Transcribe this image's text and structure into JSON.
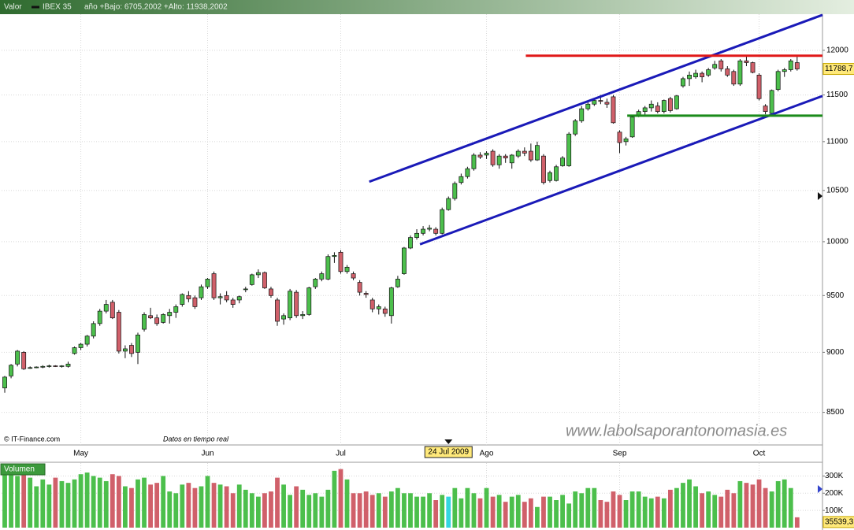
{
  "chart_data": {
    "type": "candlestick",
    "label": "Valor",
    "title": "IBEX 35",
    "subtitle": "año +Bajo: 6705,2002 +Alto: 11938,2002",
    "log_scale": true,
    "grid": true,
    "xlim": [
      -0.5,
      129
    ],
    "ylim": [
      8240,
      12420
    ],
    "yticks": [
      8500,
      9000,
      9500,
      10000,
      10500,
      11000,
      11500,
      12000
    ],
    "xticks": [
      {
        "value": 12,
        "label": "May"
      },
      {
        "value": 32,
        "label": "Jun"
      },
      {
        "value": 53,
        "label": "Jul"
      },
      {
        "value": 76,
        "label": "Ago"
      },
      {
        "value": 97,
        "label": "Sep"
      },
      {
        "value": 119,
        "label": "Oct"
      }
    ],
    "up_color": "#4cbf4c",
    "down_color": "#d0606a",
    "last_price_label": "11788,7",
    "candles": [
      {
        "open": 8700,
        "high": 8800,
        "low": 8660,
        "close": 8790
      },
      {
        "open": 8800,
        "high": 8900,
        "low": 8780,
        "close": 8890
      },
      {
        "open": 8900,
        "high": 9020,
        "low": 8880,
        "close": 9010
      },
      {
        "open": 9000,
        "high": 9010,
        "low": 8850,
        "close": 8860
      },
      {
        "open": 8870,
        "high": 8880,
        "low": 8860,
        "close": 8870
      },
      {
        "open": 8870,
        "high": 8880,
        "low": 8865,
        "close": 8875
      },
      {
        "open": 8875,
        "high": 8890,
        "low": 8865,
        "close": 8880
      },
      {
        "open": 8880,
        "high": 8895,
        "low": 8870,
        "close": 8885
      },
      {
        "open": 8885,
        "high": 8890,
        "low": 8875,
        "close": 8880
      },
      {
        "open": 8880,
        "high": 8890,
        "low": 8870,
        "close": 8885
      },
      {
        "open": 8880,
        "high": 8920,
        "low": 8870,
        "close": 8900
      },
      {
        "open": 8990,
        "high": 9050,
        "low": 8980,
        "close": 9040
      },
      {
        "open": 9040,
        "high": 9080,
        "low": 9020,
        "close": 9070
      },
      {
        "open": 9070,
        "high": 9150,
        "low": 9050,
        "close": 9140
      },
      {
        "open": 9140,
        "high": 9270,
        "low": 9120,
        "close": 9250
      },
      {
        "open": 9250,
        "high": 9380,
        "low": 9230,
        "close": 9360
      },
      {
        "open": 9360,
        "high": 9460,
        "low": 9340,
        "close": 9420
      },
      {
        "open": 9440,
        "high": 9460,
        "low": 9290,
        "close": 9300
      },
      {
        "open": 9350,
        "high": 9370,
        "low": 8990,
        "close": 9010
      },
      {
        "open": 9010,
        "high": 9060,
        "low": 8950,
        "close": 9030
      },
      {
        "open": 9060,
        "high": 9080,
        "low": 8960,
        "close": 8990
      },
      {
        "open": 9000,
        "high": 9170,
        "low": 8900,
        "close": 9150
      },
      {
        "open": 9200,
        "high": 9350,
        "low": 9180,
        "close": 9330
      },
      {
        "open": 9320,
        "high": 9390,
        "low": 9290,
        "close": 9300
      },
      {
        "open": 9300,
        "high": 9330,
        "low": 9230,
        "close": 9250
      },
      {
        "open": 9260,
        "high": 9340,
        "low": 9250,
        "close": 9330
      },
      {
        "open": 9320,
        "high": 9380,
        "low": 9250,
        "close": 9350
      },
      {
        "open": 9350,
        "high": 9420,
        "low": 9300,
        "close": 9400
      },
      {
        "open": 9420,
        "high": 9520,
        "low": 9400,
        "close": 9510
      },
      {
        "open": 9500,
        "high": 9540,
        "low": 9440,
        "close": 9470
      },
      {
        "open": 9480,
        "high": 9500,
        "low": 9380,
        "close": 9400
      },
      {
        "open": 9480,
        "high": 9600,
        "low": 9460,
        "close": 9580
      },
      {
        "open": 9580,
        "high": 9660,
        "low": 9560,
        "close": 9650
      },
      {
        "open": 9700,
        "high": 9720,
        "low": 9460,
        "close": 9480
      },
      {
        "open": 9480,
        "high": 9520,
        "low": 9420,
        "close": 9490
      },
      {
        "open": 9500,
        "high": 9540,
        "low": 9440,
        "close": 9460
      },
      {
        "open": 9460,
        "high": 9480,
        "low": 9390,
        "close": 9420
      },
      {
        "open": 9460,
        "high": 9500,
        "low": 9430,
        "close": 9490
      },
      {
        "open": 9560,
        "high": 9580,
        "low": 9530,
        "close": 9560
      },
      {
        "open": 9600,
        "high": 9700,
        "low": 9590,
        "close": 9690
      },
      {
        "open": 9690,
        "high": 9740,
        "low": 9660,
        "close": 9710
      },
      {
        "open": 9710,
        "high": 9720,
        "low": 9560,
        "close": 9570
      },
      {
        "open": 9560,
        "high": 9580,
        "low": 9480,
        "close": 9500
      },
      {
        "open": 9460,
        "high": 9480,
        "low": 9230,
        "close": 9270
      },
      {
        "open": 9290,
        "high": 9340,
        "low": 9240,
        "close": 9320
      },
      {
        "open": 9300,
        "high": 9560,
        "low": 9280,
        "close": 9540
      },
      {
        "open": 9530,
        "high": 9550,
        "low": 9300,
        "close": 9320
      },
      {
        "open": 9320,
        "high": 9360,
        "low": 9290,
        "close": 9330
      },
      {
        "open": 9330,
        "high": 9580,
        "low": 9320,
        "close": 9570
      },
      {
        "open": 9580,
        "high": 9660,
        "low": 9560,
        "close": 9650
      },
      {
        "open": 9650,
        "high": 9720,
        "low": 9630,
        "close": 9700
      },
      {
        "open": 9650,
        "high": 9880,
        "low": 9640,
        "close": 9860
      },
      {
        "open": 9860,
        "high": 9900,
        "low": 9800,
        "close": 9870
      },
      {
        "open": 9900,
        "high": 9920,
        "low": 9700,
        "close": 9720
      },
      {
        "open": 9720,
        "high": 9780,
        "low": 9700,
        "close": 9760
      },
      {
        "open": 9700,
        "high": 9720,
        "low": 9640,
        "close": 9660
      },
      {
        "open": 9620,
        "high": 9640,
        "low": 9500,
        "close": 9530
      },
      {
        "open": 9520,
        "high": 9540,
        "low": 9480,
        "close": 9510
      },
      {
        "open": 9460,
        "high": 9480,
        "low": 9350,
        "close": 9380
      },
      {
        "open": 9380,
        "high": 9420,
        "low": 9330,
        "close": 9400
      },
      {
        "open": 9380,
        "high": 9400,
        "low": 9310,
        "close": 9340
      },
      {
        "open": 9320,
        "high": 9580,
        "low": 9250,
        "close": 9570
      },
      {
        "open": 9580,
        "high": 9680,
        "low": 9570,
        "close": 9650
      },
      {
        "open": 9700,
        "high": 9950,
        "low": 9690,
        "close": 9940
      },
      {
        "open": 9940,
        "high": 10060,
        "low": 9930,
        "close": 10040
      },
      {
        "open": 10040,
        "high": 10120,
        "low": 10020,
        "close": 10080
      },
      {
        "open": 10080,
        "high": 10150,
        "low": 10060,
        "close": 10120
      },
      {
        "open": 10120,
        "high": 10160,
        "low": 10100,
        "close": 10130
      },
      {
        "open": 10120,
        "high": 10140,
        "low": 10060,
        "close": 10080
      },
      {
        "open": 10080,
        "high": 10330,
        "low": 10070,
        "close": 10310
      },
      {
        "open": 10310,
        "high": 10440,
        "low": 10300,
        "close": 10420
      },
      {
        "open": 10420,
        "high": 10590,
        "low": 10400,
        "close": 10570
      },
      {
        "open": 10580,
        "high": 10670,
        "low": 10560,
        "close": 10640
      },
      {
        "open": 10640,
        "high": 10740,
        "low": 10620,
        "close": 10720
      },
      {
        "open": 10720,
        "high": 10880,
        "low": 10700,
        "close": 10860
      },
      {
        "open": 10860,
        "high": 10890,
        "low": 10820,
        "close": 10840
      },
      {
        "open": 10860,
        "high": 10900,
        "low": 10820,
        "close": 10880
      },
      {
        "open": 10900,
        "high": 10920,
        "low": 10740,
        "close": 10760
      },
      {
        "open": 10760,
        "high": 10870,
        "low": 10720,
        "close": 10850
      },
      {
        "open": 10850,
        "high": 10870,
        "low": 10780,
        "close": 10830
      },
      {
        "open": 10780,
        "high": 10870,
        "low": 10720,
        "close": 10860
      },
      {
        "open": 10850,
        "high": 10920,
        "low": 10830,
        "close": 10900
      },
      {
        "open": 10900,
        "high": 10940,
        "low": 10850,
        "close": 10880
      },
      {
        "open": 10900,
        "high": 10980,
        "low": 10790,
        "close": 10810
      },
      {
        "open": 10810,
        "high": 11000,
        "low": 10800,
        "close": 10960
      },
      {
        "open": 10850,
        "high": 10870,
        "low": 10560,
        "close": 10580
      },
      {
        "open": 10600,
        "high": 10700,
        "low": 10580,
        "close": 10680
      },
      {
        "open": 10600,
        "high": 10760,
        "low": 10590,
        "close": 10740
      },
      {
        "open": 10750,
        "high": 10850,
        "low": 10740,
        "close": 10830
      },
      {
        "open": 10750,
        "high": 11100,
        "low": 10740,
        "close": 11080
      },
      {
        "open": 11080,
        "high": 11240,
        "low": 11060,
        "close": 11220
      },
      {
        "open": 11220,
        "high": 11380,
        "low": 11200,
        "close": 11350
      },
      {
        "open": 11350,
        "high": 11420,
        "low": 11330,
        "close": 11400
      },
      {
        "open": 11400,
        "high": 11460,
        "low": 11380,
        "close": 11440
      },
      {
        "open": 11440,
        "high": 11500,
        "low": 11400,
        "close": 11430
      },
      {
        "open": 11420,
        "high": 11460,
        "low": 11360,
        "close": 11400
      },
      {
        "open": 11480,
        "high": 11500,
        "low": 11190,
        "close": 11200
      },
      {
        "open": 11100,
        "high": 11120,
        "low": 10880,
        "close": 10990
      },
      {
        "open": 11000,
        "high": 11050,
        "low": 10960,
        "close": 11030
      },
      {
        "open": 11050,
        "high": 11280,
        "low": 11040,
        "close": 11260
      },
      {
        "open": 11280,
        "high": 11340,
        "low": 11260,
        "close": 11320
      },
      {
        "open": 11320,
        "high": 11380,
        "low": 11280,
        "close": 11360
      },
      {
        "open": 11360,
        "high": 11440,
        "low": 11320,
        "close": 11400
      },
      {
        "open": 11380,
        "high": 11420,
        "low": 11300,
        "close": 11320
      },
      {
        "open": 11320,
        "high": 11450,
        "low": 11300,
        "close": 11440
      },
      {
        "open": 11460,
        "high": 11480,
        "low": 11310,
        "close": 11330
      },
      {
        "open": 11350,
        "high": 11500,
        "low": 11340,
        "close": 11490
      },
      {
        "open": 11600,
        "high": 11700,
        "low": 11580,
        "close": 11680
      },
      {
        "open": 11680,
        "high": 11760,
        "low": 11600,
        "close": 11720
      },
      {
        "open": 11700,
        "high": 11780,
        "low": 11680,
        "close": 11740
      },
      {
        "open": 11740,
        "high": 11760,
        "low": 11640,
        "close": 11700
      },
      {
        "open": 11720,
        "high": 11800,
        "low": 11700,
        "close": 11780
      },
      {
        "open": 11800,
        "high": 11880,
        "low": 11780,
        "close": 11840
      },
      {
        "open": 11880,
        "high": 11900,
        "low": 11760,
        "close": 11790
      },
      {
        "open": 11790,
        "high": 11820,
        "low": 11700,
        "close": 11720
      },
      {
        "open": 11760,
        "high": 11780,
        "low": 11600,
        "close": 11620
      },
      {
        "open": 11620,
        "high": 11900,
        "low": 11600,
        "close": 11880
      },
      {
        "open": 11880,
        "high": 11930,
        "low": 11820,
        "close": 11860
      },
      {
        "open": 11860,
        "high": 11870,
        "low": 11740,
        "close": 11750
      },
      {
        "open": 11720,
        "high": 11740,
        "low": 11440,
        "close": 11460
      },
      {
        "open": 11380,
        "high": 11400,
        "low": 11290,
        "close": 11320
      },
      {
        "open": 11300,
        "high": 11560,
        "low": 11280,
        "close": 11550
      },
      {
        "open": 11560,
        "high": 11780,
        "low": 11540,
        "close": 11760
      },
      {
        "open": 11760,
        "high": 11800,
        "low": 11700,
        "close": 11780
      },
      {
        "open": 11780,
        "high": 11900,
        "low": 11760,
        "close": 11880
      },
      {
        "open": 11860,
        "high": 11938,
        "low": 11770,
        "close": 11788.7
      }
    ],
    "lines": [
      {
        "x": [
          57.5,
          129
        ],
        "y": [
          10588,
          12411
        ],
        "color": "#1a1ab8"
      },
      {
        "x": [
          65.5,
          129
        ],
        "y": [
          9975,
          11489
        ],
        "color": "#1a1ab8"
      },
      {
        "x": [
          82.2,
          129
        ],
        "y": [
          11938,
          11938
        ],
        "color": "#e01818"
      },
      {
        "x": [
          98.2,
          129
        ],
        "y": [
          11276,
          11276
        ],
        "color": "#1a8a1a"
      }
    ],
    "cursor": {
      "x": 70,
      "label": "24 Jul 2009",
      "color": "#33d6e0"
    },
    "volume": {
      "type": "bar",
      "name": "Volumen",
      "ylim": [
        0,
        375000
      ],
      "yticks": [
        {
          "value": 100000,
          "label": "100K"
        },
        {
          "value": 200000,
          "label": "200K"
        },
        {
          "value": 300000,
          "label": "300K"
        }
      ],
      "last_label": "35539,3",
      "values": [
        320000,
        330000,
        300000,
        310000,
        290000,
        240000,
        280000,
        250000,
        290000,
        270000,
        260000,
        280000,
        310000,
        320000,
        300000,
        290000,
        270000,
        310000,
        300000,
        240000,
        230000,
        280000,
        290000,
        250000,
        260000,
        300000,
        210000,
        200000,
        250000,
        260000,
        230000,
        240000,
        300000,
        260000,
        250000,
        240000,
        200000,
        250000,
        220000,
        200000,
        180000,
        200000,
        210000,
        290000,
        250000,
        190000,
        240000,
        220000,
        190000,
        200000,
        180000,
        220000,
        330000,
        340000,
        280000,
        200000,
        200000,
        210000,
        190000,
        200000,
        180000,
        210000,
        230000,
        200000,
        200000,
        180000,
        180000,
        200000,
        160000,
        190000,
        180000,
        230000,
        170000,
        230000,
        200000,
        170000,
        230000,
        180000,
        190000,
        150000,
        180000,
        190000,
        150000,
        170000,
        120000,
        180000,
        180000,
        160000,
        190000,
        140000,
        210000,
        200000,
        230000,
        230000,
        160000,
        150000,
        210000,
        190000,
        160000,
        210000,
        210000,
        180000,
        170000,
        180000,
        170000,
        220000,
        230000,
        260000,
        280000,
        240000,
        200000,
        210000,
        190000,
        180000,
        220000,
        200000,
        270000,
        260000,
        250000,
        280000,
        230000,
        210000,
        270000,
        280000,
        230000,
        60000
      ]
    },
    "credits": "© IT-Finance.com",
    "note": "Datos en tiempo real",
    "watermark": "www.labolsaporantonomasia.es"
  }
}
